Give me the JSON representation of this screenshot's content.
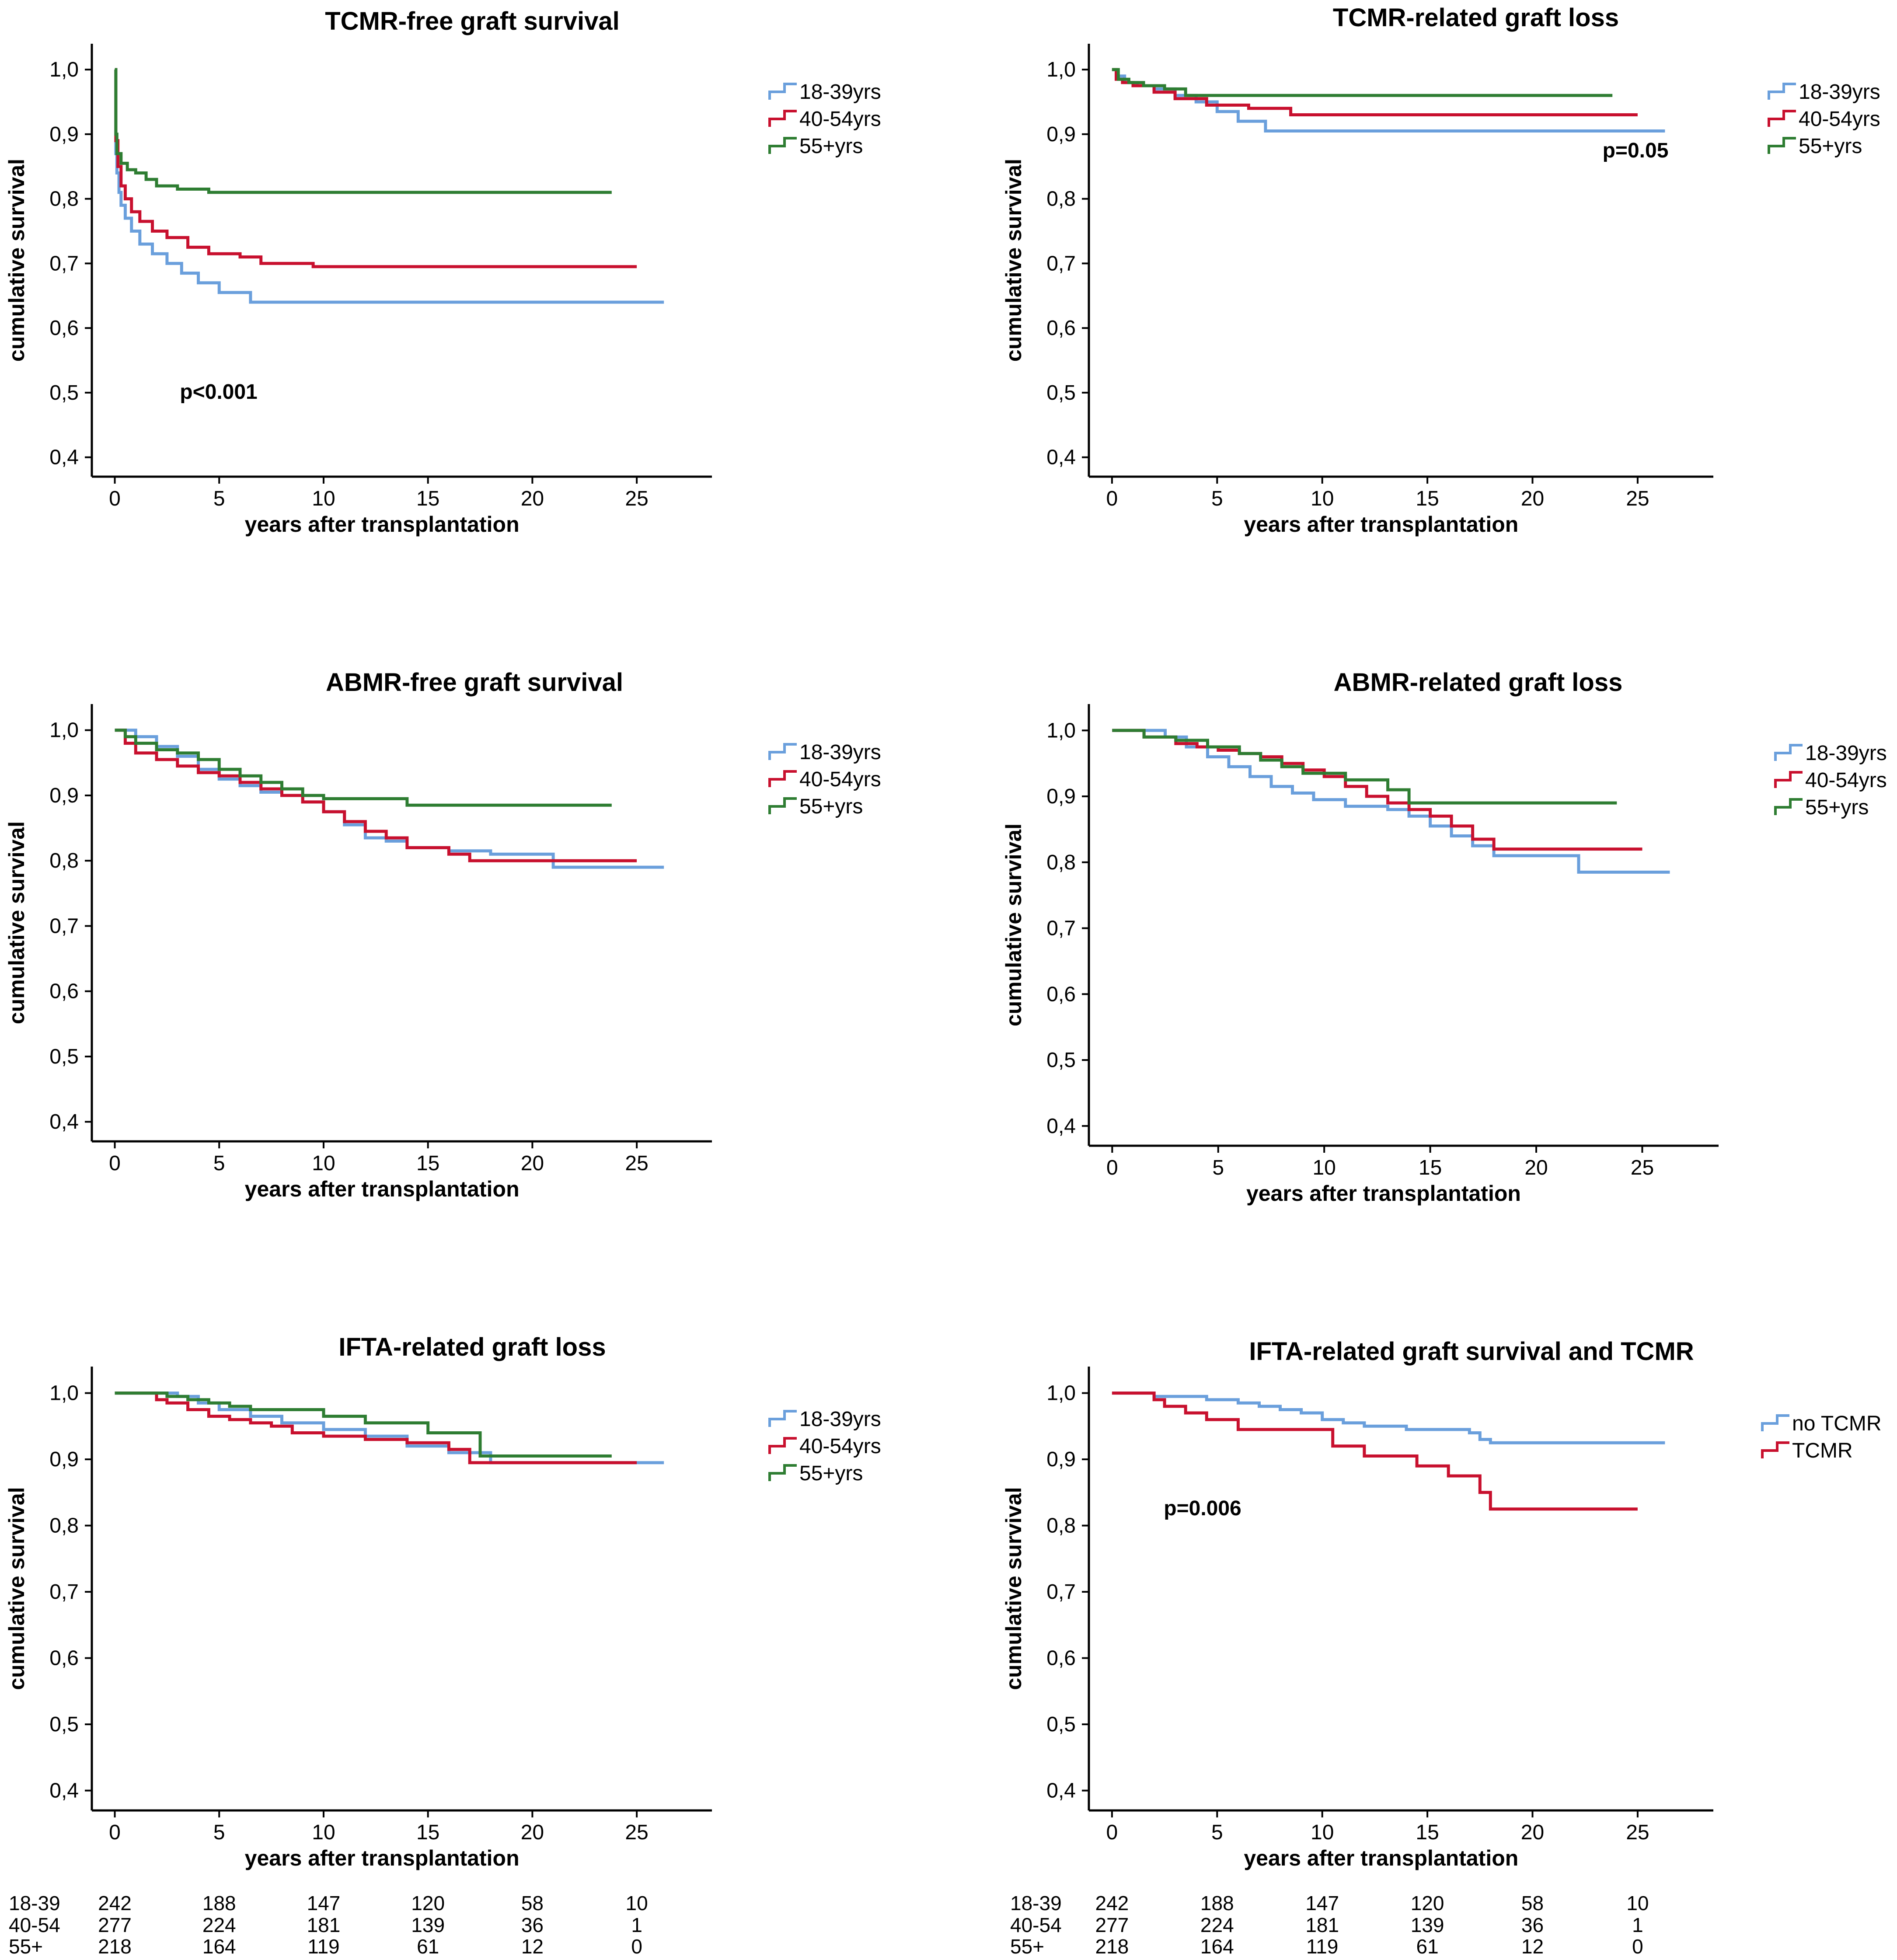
{
  "figure": {
    "x_axis_label": "years after transplantation",
    "y_axis_label": "cumulative survival",
    "x_ticks": [
      "0",
      "5",
      "10",
      "15",
      "20",
      "25"
    ],
    "y_ticks": [
      "0,4",
      "0,5",
      "0,6",
      "0,7",
      "0,8",
      "0,9",
      "1,0"
    ]
  },
  "colors": {
    "blue": "#6a9fdc",
    "red": "#c8102e",
    "green": "#2e7d32"
  },
  "chart_data": [
    {
      "type": "line",
      "title": "TCMR-free graft survival",
      "xlabel": "years after transplantation",
      "ylabel": "cumulative survival",
      "xlim": [
        -1,
        28.5
      ],
      "ylim": [
        0.37,
        1.04
      ],
      "legend_position": "right",
      "p_value": "p<0.001",
      "series": [
        {
          "name": "18-39yrs",
          "color": "#6a9fdc",
          "x": [
            0,
            0.05,
            0.1,
            0.2,
            0.3,
            0.5,
            0.8,
            1.2,
            1.8,
            2.5,
            3.2,
            4,
            5,
            6.5,
            26.3
          ],
          "y": [
            1.0,
            0.87,
            0.84,
            0.81,
            0.79,
            0.77,
            0.75,
            0.73,
            0.715,
            0.7,
            0.685,
            0.67,
            0.655,
            0.64,
            0.64
          ]
        },
        {
          "name": "40-54yrs",
          "color": "#c8102e",
          "x": [
            0,
            0.05,
            0.15,
            0.3,
            0.5,
            0.8,
            1.2,
            1.8,
            2.5,
            3.5,
            4.5,
            6,
            7,
            9.5,
            25
          ],
          "y": [
            1.0,
            0.89,
            0.85,
            0.82,
            0.8,
            0.78,
            0.765,
            0.75,
            0.74,
            0.725,
            0.715,
            0.71,
            0.7,
            0.695,
            0.695
          ]
        },
        {
          "name": "55+yrs",
          "color": "#2e7d32",
          "x": [
            0,
            0.05,
            0.1,
            0.3,
            0.6,
            1,
            1.5,
            2,
            3,
            4.5,
            23.8
          ],
          "y": [
            1.0,
            0.9,
            0.87,
            0.855,
            0.845,
            0.84,
            0.83,
            0.82,
            0.815,
            0.81,
            0.81
          ]
        }
      ]
    },
    {
      "type": "line",
      "title": "TCMR-related graft loss",
      "xlabel": "years after transplantation",
      "ylabel": "cumulative survival",
      "xlim": [
        -1,
        28.5
      ],
      "ylim": [
        0.37,
        1.04
      ],
      "legend_position": "right",
      "p_value": "p=0.05",
      "series": [
        {
          "name": "18-39yrs",
          "color": "#6a9fdc",
          "x": [
            0,
            0.2,
            0.6,
            1.2,
            2,
            3,
            4,
            5,
            6,
            7.3,
            26.3
          ],
          "y": [
            1.0,
            0.99,
            0.98,
            0.975,
            0.97,
            0.96,
            0.95,
            0.935,
            0.92,
            0.905,
            0.905
          ]
        },
        {
          "name": "40-54yrs",
          "color": "#c8102e",
          "x": [
            0,
            0.2,
            0.5,
            1,
            2,
            3,
            4.5,
            6.5,
            8.5,
            25
          ],
          "y": [
            1.0,
            0.985,
            0.98,
            0.975,
            0.965,
            0.955,
            0.945,
            0.94,
            0.93,
            0.93
          ]
        },
        {
          "name": "55+yrs",
          "color": "#2e7d32",
          "x": [
            0,
            0.3,
            0.8,
            1.5,
            2.5,
            3.5,
            23.8
          ],
          "y": [
            1.0,
            0.985,
            0.98,
            0.975,
            0.97,
            0.96,
            0.96
          ]
        }
      ]
    },
    {
      "type": "line",
      "title": "ABMR-free graft survival",
      "xlabel": "years after transplantation",
      "ylabel": "cumulative survival",
      "xlim": [
        -1,
        28.5
      ],
      "ylim": [
        0.37,
        1.04
      ],
      "legend_position": "right",
      "series": [
        {
          "name": "18-39yrs",
          "color": "#6a9fdc",
          "x": [
            0,
            1,
            2,
            3,
            4,
            5,
            6,
            7,
            8,
            9,
            10,
            11,
            12,
            13,
            14,
            16,
            18,
            21,
            26.3
          ],
          "y": [
            1.0,
            0.99,
            0.975,
            0.96,
            0.94,
            0.925,
            0.915,
            0.905,
            0.9,
            0.89,
            0.875,
            0.855,
            0.835,
            0.83,
            0.82,
            0.815,
            0.81,
            0.79,
            0.79
          ]
        },
        {
          "name": "40-54yrs",
          "color": "#c8102e",
          "x": [
            0,
            0.5,
            1,
            2,
            3,
            4,
            5,
            6,
            7,
            8,
            9,
            10,
            11,
            12,
            13,
            14,
            16,
            17,
            25
          ],
          "y": [
            1.0,
            0.98,
            0.965,
            0.955,
            0.945,
            0.935,
            0.93,
            0.92,
            0.91,
            0.9,
            0.89,
            0.875,
            0.86,
            0.845,
            0.835,
            0.82,
            0.81,
            0.8,
            0.8
          ]
        },
        {
          "name": "55+yrs",
          "color": "#2e7d32",
          "x": [
            0,
            0.5,
            1,
            2,
            3,
            4,
            5,
            6,
            7,
            8,
            9,
            10,
            14,
            23.8
          ],
          "y": [
            1.0,
            0.99,
            0.98,
            0.97,
            0.965,
            0.955,
            0.94,
            0.93,
            0.92,
            0.91,
            0.9,
            0.895,
            0.885,
            0.885
          ]
        }
      ]
    },
    {
      "type": "line",
      "title": "ABMR-related graft loss",
      "xlabel": "years after transplantation",
      "ylabel": "cumulative survival",
      "xlim": [
        -1,
        28.5
      ],
      "ylim": [
        0.37,
        1.04
      ],
      "legend_position": "right",
      "series": [
        {
          "name": "18-39yrs",
          "color": "#6a9fdc",
          "x": [
            0,
            2.5,
            3.5,
            4.5,
            5.5,
            6.5,
            7.5,
            8.5,
            9.5,
            11,
            13,
            14,
            15,
            16,
            17,
            18,
            22,
            26.3
          ],
          "y": [
            1.0,
            0.99,
            0.975,
            0.96,
            0.945,
            0.93,
            0.915,
            0.905,
            0.895,
            0.885,
            0.88,
            0.87,
            0.855,
            0.84,
            0.825,
            0.81,
            0.785,
            0.785
          ]
        },
        {
          "name": "40-54yrs",
          "color": "#c8102e",
          "x": [
            0,
            1.5,
            3,
            4,
            5,
            6,
            7,
            8,
            9,
            10,
            11,
            12,
            13,
            14,
            15,
            16,
            17,
            18,
            25
          ],
          "y": [
            1.0,
            0.99,
            0.98,
            0.975,
            0.97,
            0.965,
            0.96,
            0.95,
            0.94,
            0.93,
            0.915,
            0.9,
            0.89,
            0.88,
            0.87,
            0.855,
            0.835,
            0.82,
            0.82
          ]
        },
        {
          "name": "55+yrs",
          "color": "#2e7d32",
          "x": [
            0,
            1.5,
            3,
            4.5,
            6,
            7,
            8,
            9,
            11,
            13,
            14,
            23.8
          ],
          "y": [
            1.0,
            0.99,
            0.985,
            0.975,
            0.965,
            0.955,
            0.945,
            0.935,
            0.925,
            0.91,
            0.89,
            0.89
          ]
        }
      ]
    },
    {
      "type": "line",
      "title": "IFTA-related graft loss",
      "xlabel": "years after transplantation",
      "ylabel": "cumulative survival",
      "xlim": [
        -1,
        28.5
      ],
      "ylim": [
        0.37,
        1.04
      ],
      "legend_position": "right",
      "series": [
        {
          "name": "18-39yrs",
          "color": "#6a9fdc",
          "x": [
            0,
            3,
            4,
            5,
            6.5,
            8,
            10,
            12,
            14,
            16,
            18,
            26.3
          ],
          "y": [
            1.0,
            0.995,
            0.985,
            0.975,
            0.965,
            0.955,
            0.945,
            0.935,
            0.92,
            0.91,
            0.895,
            0.895
          ]
        },
        {
          "name": "40-54yrs",
          "color": "#c8102e",
          "x": [
            0,
            2,
            2.5,
            3.5,
            4.5,
            5.5,
            6.5,
            7.5,
            8.5,
            10,
            12,
            14,
            16,
            17,
            25
          ],
          "y": [
            1.0,
            0.99,
            0.985,
            0.975,
            0.965,
            0.96,
            0.955,
            0.95,
            0.94,
            0.935,
            0.93,
            0.925,
            0.915,
            0.895,
            0.895
          ]
        },
        {
          "name": "55+yrs",
          "color": "#2e7d32",
          "x": [
            0,
            2.5,
            3.5,
            4.5,
            5.5,
            6.5,
            10,
            12,
            15,
            17.5,
            23.8
          ],
          "y": [
            1.0,
            0.995,
            0.99,
            0.985,
            0.98,
            0.975,
            0.965,
            0.955,
            0.94,
            0.905,
            0.905
          ]
        }
      ]
    },
    {
      "type": "line",
      "title": "IFTA-related graft survival and TCMR",
      "xlabel": "years after transplantation",
      "ylabel": "cumulative survival",
      "xlim": [
        -1,
        28.5
      ],
      "ylim": [
        0.37,
        1.04
      ],
      "legend_position": "right",
      "p_value": "p=0.006",
      "series": [
        {
          "name": "no TCMR",
          "color": "#6a9fdc",
          "x": [
            0,
            2,
            4.5,
            6,
            7,
            8,
            9,
            10,
            11,
            12,
            14,
            17,
            17.5,
            18,
            26.3
          ],
          "y": [
            1.0,
            0.995,
            0.99,
            0.985,
            0.98,
            0.975,
            0.97,
            0.96,
            0.955,
            0.95,
            0.945,
            0.94,
            0.93,
            0.925,
            0.925
          ]
        },
        {
          "name": "TCMR",
          "color": "#c8102e",
          "x": [
            0,
            2,
            2.5,
            3.5,
            4.5,
            6,
            10.5,
            12,
            14.5,
            16,
            17.5,
            18,
            25
          ],
          "y": [
            1.0,
            0.99,
            0.98,
            0.97,
            0.96,
            0.945,
            0.92,
            0.905,
            0.89,
            0.875,
            0.85,
            0.825,
            0.825
          ]
        }
      ]
    }
  ],
  "numbers_at_risk": {
    "rows": [
      {
        "label": "18-39",
        "values": [
          "242",
          "188",
          "147",
          "120",
          "58",
          "10"
        ]
      },
      {
        "label": "40-54",
        "values": [
          "277",
          "224",
          "181",
          "139",
          "36",
          "1"
        ]
      },
      {
        "label": "55+",
        "values": [
          "218",
          "164",
          "119",
          "61",
          "12",
          "0"
        ]
      }
    ]
  }
}
